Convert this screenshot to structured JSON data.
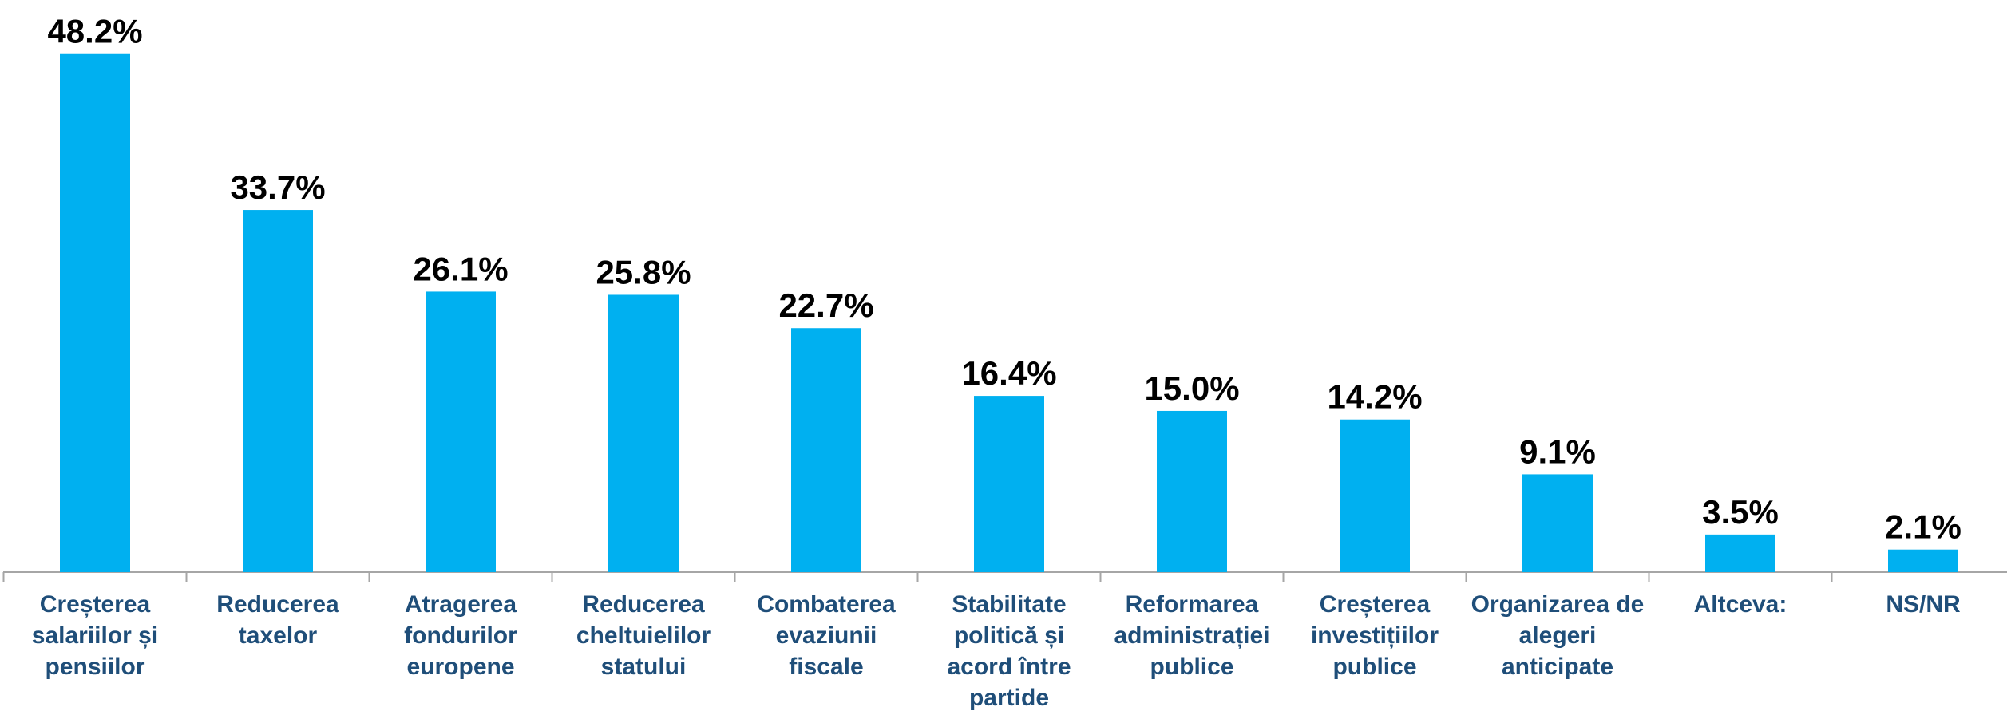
{
  "chart_data": {
    "type": "bar",
    "categories": [
      "Creșterea salariilor și pensiilor",
      "Reducerea taxelor",
      "Atragerea fondurilor europene",
      "Reducerea cheltuielilor statului",
      "Combaterea evaziunii fiscale",
      "Stabilitate politică și acord între partide",
      "Reformarea administrației publice",
      "Creșterea investițiilor publice",
      "Organizarea de alegeri anticipate",
      "Altceva:",
      "NS/NR"
    ],
    "values": [
      48.2,
      33.7,
      26.1,
      25.8,
      22.7,
      16.4,
      15.0,
      14.2,
      9.1,
      3.5,
      2.1
    ],
    "value_labels": [
      "48.2%",
      "33.7%",
      "26.1%",
      "25.8%",
      "22.7%",
      "16.4%",
      "15.0%",
      "14.2%",
      "9.1%",
      "3.5%",
      "2.1%"
    ],
    "color": "#00b0f0"
  }
}
